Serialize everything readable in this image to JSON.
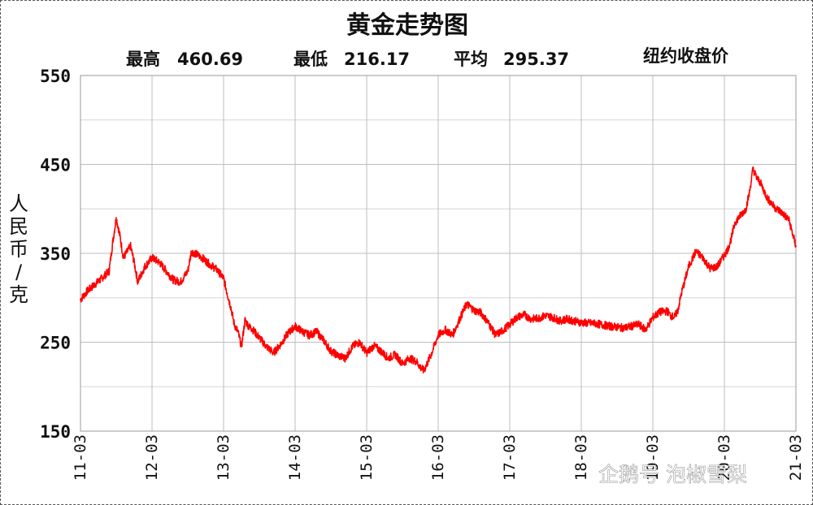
{
  "chart_data": {
    "type": "line",
    "title": "黄金走势图",
    "stats": {
      "high_label": "最高",
      "high_value": "460.69",
      "low_label": "最低",
      "low_value": "216.17",
      "avg_label": "平均",
      "avg_value": "295.37",
      "note": "纽约收盘价"
    },
    "ylabel": "人民币/克",
    "ylim": [
      150,
      550
    ],
    "yticks": [
      150,
      250,
      350,
      450,
      550
    ],
    "xlim": [
      2011,
      2021
    ],
    "xticks": [
      {
        "x": 2011,
        "label": "11-03"
      },
      {
        "x": 2012,
        "label": "12-03"
      },
      {
        "x": 2013,
        "label": "13-03"
      },
      {
        "x": 2014,
        "label": "14-03"
      },
      {
        "x": 2015,
        "label": "15-03"
      },
      {
        "x": 2016,
        "label": "16-03"
      },
      {
        "x": 2017,
        "label": "17-03"
      },
      {
        "x": 2018,
        "label": "18-03"
      },
      {
        "x": 2019,
        "label": "19-03"
      },
      {
        "x": 2020,
        "label": "20-03"
      },
      {
        "x": 2021,
        "label": "21-03"
      }
    ],
    "grid": true,
    "series": [
      {
        "color": "#ff0000",
        "x": [
          2011.0,
          2011.1,
          2011.2,
          2011.3,
          2011.4,
          2011.45,
          2011.5,
          2011.55,
          2011.6,
          2011.7,
          2011.75,
          2011.8,
          2011.9,
          2012.0,
          2012.1,
          2012.2,
          2012.3,
          2012.4,
          2012.5,
          2012.55,
          2012.6,
          2012.7,
          2012.8,
          2012.9,
          2013.0,
          2013.05,
          2013.1,
          2013.15,
          2013.2,
          2013.25,
          2013.3,
          2013.35,
          2013.4,
          2013.5,
          2013.6,
          2013.7,
          2013.8,
          2013.9,
          2014.0,
          2014.1,
          2014.2,
          2014.3,
          2014.4,
          2014.5,
          2014.6,
          2014.7,
          2014.8,
          2014.9,
          2015.0,
          2015.1,
          2015.2,
          2015.3,
          2015.4,
          2015.5,
          2015.6,
          2015.7,
          2015.75,
          2015.8,
          2015.9,
          2016.0,
          2016.1,
          2016.2,
          2016.3,
          2016.35,
          2016.4,
          2016.5,
          2016.6,
          2016.7,
          2016.8,
          2016.9,
          2017.0,
          2017.1,
          2017.2,
          2017.3,
          2017.4,
          2017.5,
          2017.6,
          2017.7,
          2017.8,
          2017.9,
          2018.0,
          2018.2,
          2018.4,
          2018.6,
          2018.8,
          2018.9,
          2019.0,
          2019.1,
          2019.2,
          2019.25,
          2019.3,
          2019.35,
          2019.4,
          2019.45,
          2019.5,
          2019.6,
          2019.7,
          2019.8,
          2019.9,
          2020.0,
          2020.05,
          2020.1,
          2020.15,
          2020.2,
          2020.3,
          2020.35,
          2020.4,
          2020.45,
          2020.5,
          2020.6,
          2020.7,
          2020.8,
          2020.9,
          2021.0
        ],
        "values": [
          298,
          308,
          315,
          322,
          330,
          362,
          390,
          370,
          345,
          358,
          340,
          318,
          335,
          345,
          340,
          330,
          320,
          318,
          330,
          352,
          350,
          345,
          338,
          332,
          322,
          305,
          290,
          270,
          262,
          245,
          275,
          268,
          265,
          255,
          245,
          238,
          248,
          260,
          268,
          262,
          258,
          262,
          252,
          240,
          235,
          232,
          245,
          250,
          238,
          246,
          240,
          232,
          236,
          226,
          232,
          228,
          222,
          218,
          236,
          258,
          264,
          258,
          276,
          285,
          293,
          286,
          283,
          272,
          258,
          263,
          270,
          278,
          281,
          276,
          277,
          280,
          278,
          274,
          276,
          274,
          272,
          271,
          268,
          266,
          270,
          264,
          278,
          284,
          285,
          280,
          278,
          286,
          305,
          320,
          335,
          352,
          345,
          333,
          335,
          348,
          355,
          368,
          385,
          390,
          400,
          418,
          445,
          435,
          430,
          412,
          402,
          396,
          388,
          358
        ]
      }
    ]
  },
  "watermark": "企鹅号 泡椒雪梨"
}
